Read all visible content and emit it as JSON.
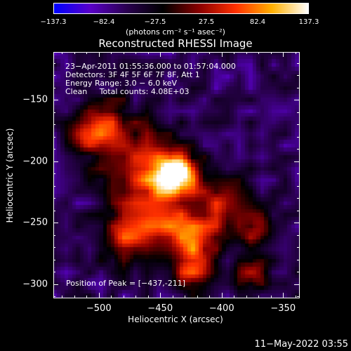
{
  "colorbar": {
    "ticks": [
      "-137.3",
      "-82.4",
      "-27.5",
      "27.5",
      "82.4",
      "137.3"
    ],
    "tick_values": [
      -137.3,
      -82.4,
      -27.5,
      27.5,
      82.4,
      137.3
    ],
    "label": "(photons cm⁻² s⁻¹ asec⁻²)",
    "colors": [
      "#0000ff",
      "#5a00c8",
      "#2a0050",
      "#000000",
      "#8a0000",
      "#ff3000",
      "#ffb000",
      "#ffffff"
    ]
  },
  "chart_data": {
    "type": "heatmap",
    "title": "Reconstructed RHESSI Image",
    "xlabel": "Heliocentric X (arcsec)",
    "ylabel": "Heliocentric Y (arcsec)",
    "xlim": [
      -537,
      -337
    ],
    "ylim": [
      -311,
      -111
    ],
    "xticks": [
      -500,
      -450,
      -400,
      -350
    ],
    "yticks": [
      -150,
      -200,
      -250,
      -300
    ],
    "zlim": [
      -137.3,
      137.3
    ],
    "peak": {
      "x": -437,
      "y": -211,
      "value": 137.3
    },
    "sources": [
      {
        "x": -437,
        "y": -211,
        "sigma": 12,
        "amp": 137.3
      },
      {
        "x": -465,
        "y": -205,
        "sigma": 22,
        "amp": 70
      },
      {
        "x": -450,
        "y": -250,
        "sigma": 18,
        "amp": 55
      },
      {
        "x": -420,
        "y": -265,
        "sigma": 15,
        "amp": 45
      },
      {
        "x": -495,
        "y": -165,
        "sigma": 14,
        "amp": 40
      },
      {
        "x": -480,
        "y": -265,
        "sigma": 14,
        "amp": 40
      },
      {
        "x": -400,
        "y": -235,
        "sigma": 16,
        "amp": 40
      },
      {
        "x": -370,
        "y": -255,
        "sigma": 10,
        "amp": 35
      },
      {
        "x": -375,
        "y": -290,
        "sigma": 10,
        "amp": 35
      },
      {
        "x": -425,
        "y": -290,
        "sigma": 12,
        "amp": 35
      },
      {
        "x": -510,
        "y": -180,
        "sigma": 10,
        "amp": 30
      }
    ],
    "annotations": [
      "23-Apr-2011 01:55:36.000 to 01:57:04.000",
      "Detectors: 3F 4F 5F 6F 7F 8F, Att 1",
      "Energy Range: 3.0 - 6.0 keV",
      "Clean     Total counts: 4.08E+03"
    ],
    "peak_label": "Position of Peak = [-437,-211]"
  },
  "footer": {
    "timestamp": "11-May-2022 03:55"
  }
}
